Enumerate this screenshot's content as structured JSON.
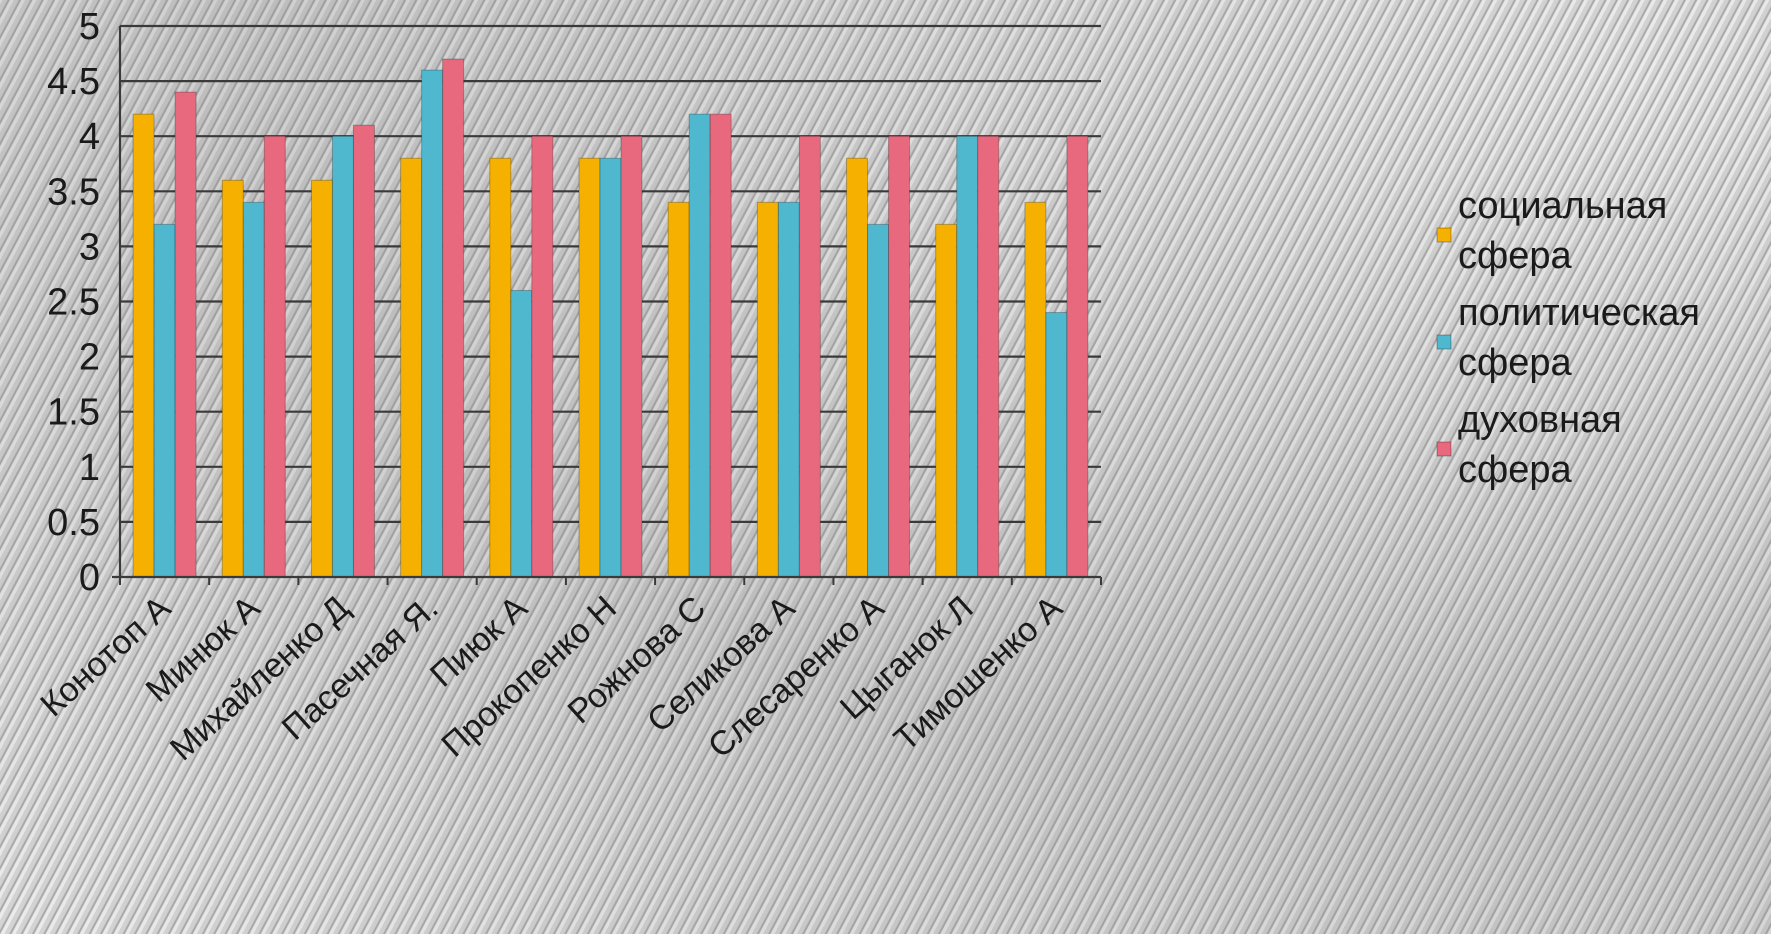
{
  "chart_data": {
    "type": "bar",
    "categories": [
      "Конотоп А",
      "Минюк А",
      "Михайленко Д",
      "Пасечная  Я.",
      "Пиюк А",
      "Прокопенко Н",
      "Рожнова С",
      "Селикова А",
      "Слесаренко А",
      "Цыганок Л",
      "Тимошенко А"
    ],
    "series": [
      {
        "name": "социальная сфера",
        "color": "#f5b000",
        "values": [
          4.2,
          3.6,
          3.6,
          3.8,
          3.8,
          3.8,
          3.4,
          3.4,
          3.8,
          3.2,
          3.4
        ]
      },
      {
        "name": "политическая сфера",
        "color": "#4fb8cf",
        "values": [
          3.2,
          3.4,
          4.0,
          4.6,
          2.6,
          3.8,
          4.2,
          3.4,
          3.2,
          4.0,
          2.4
        ]
      },
      {
        "name": "духовная сфера",
        "color": "#e8687e",
        "values": [
          4.4,
          4.0,
          4.1,
          4.7,
          4.0,
          4.0,
          4.2,
          4.0,
          4.0,
          4.0,
          4.0
        ]
      }
    ],
    "y_ticks": [
      "0",
      "0.5",
      "1",
      "1.5",
      "2",
      "2.5",
      "3",
      "3.5",
      "4",
      "4.5",
      "5"
    ],
    "ylim": [
      0,
      5
    ],
    "grid": true,
    "legend_position": "right",
    "legend_lines": [
      [
        "социальная",
        "сфера"
      ],
      [
        "политическая",
        "сфера"
      ],
      [
        "духовная",
        "сфера"
      ]
    ],
    "title": "",
    "xlabel": "",
    "ylabel": ""
  }
}
